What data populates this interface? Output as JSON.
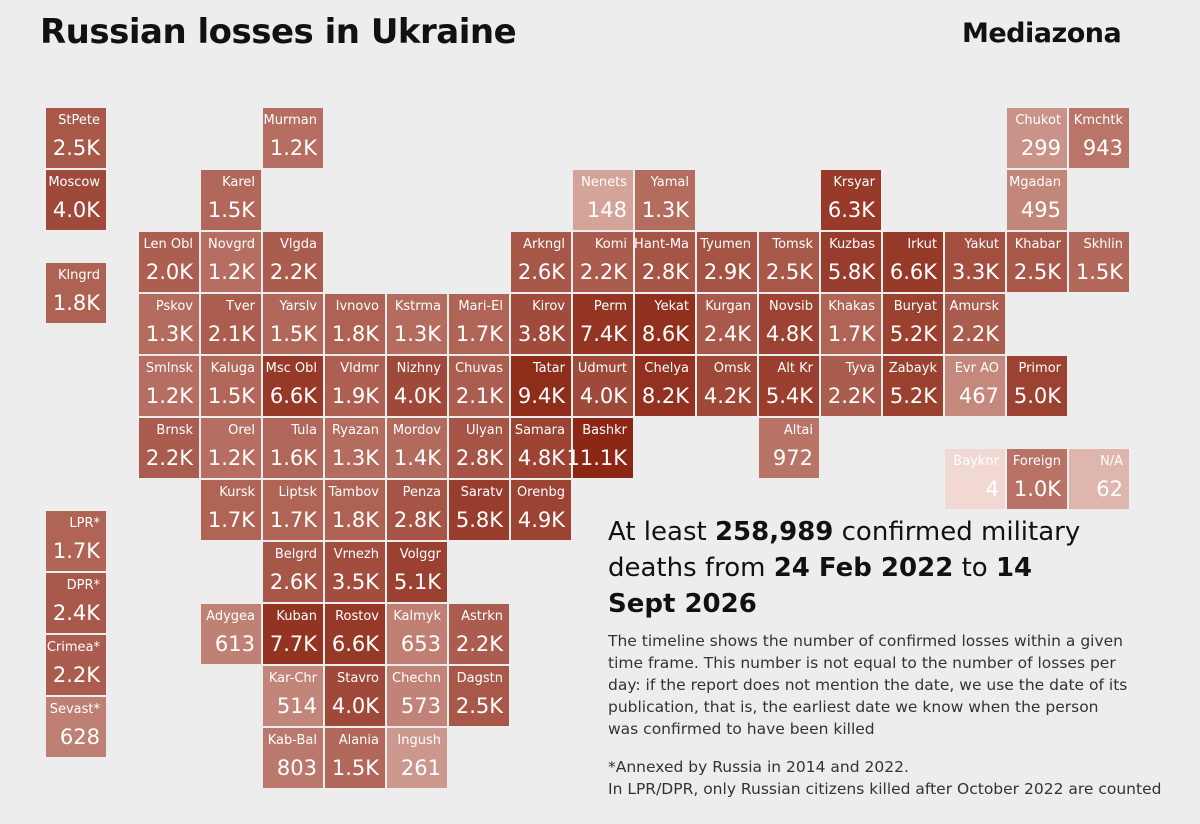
{
  "header": {
    "title": "Russian losses in Ukraine",
    "brand": "Mediazona"
  },
  "tiles": [
    {
      "name": "StPete",
      "value": 2500,
      "label": "2.5K"
    },
    {
      "name": "Murman",
      "value": 1200,
      "label": "1.2K"
    },
    {
      "name": "Chukot",
      "value": 299,
      "label": "299"
    },
    {
      "name": "Kmchtk",
      "value": 943,
      "label": "943"
    },
    {
      "name": "Moscow",
      "value": 4000,
      "label": "4.0K"
    },
    {
      "name": "Karel",
      "value": 1500,
      "label": "1.5K"
    },
    {
      "name": "Nenets",
      "value": 148,
      "label": "148"
    },
    {
      "name": "Yamal",
      "value": 1300,
      "label": "1.3K"
    },
    {
      "name": "Krsyar",
      "value": 6300,
      "label": "6.3K"
    },
    {
      "name": "Mgadan",
      "value": 495,
      "label": "495"
    },
    {
      "name": "Len Obl",
      "value": 2000,
      "label": "2.0K"
    },
    {
      "name": "Novgrd",
      "value": 1200,
      "label": "1.2K"
    },
    {
      "name": "Vlgda",
      "value": 2200,
      "label": "2.2K"
    },
    {
      "name": "Arkngl",
      "value": 2600,
      "label": "2.6K"
    },
    {
      "name": "Komi",
      "value": 2200,
      "label": "2.2K"
    },
    {
      "name": "Hant-Ma",
      "value": 2800,
      "label": "2.8K"
    },
    {
      "name": "Tyumen",
      "value": 2900,
      "label": "2.9K"
    },
    {
      "name": "Tomsk",
      "value": 2500,
      "label": "2.5K"
    },
    {
      "name": "Kuzbas",
      "value": 5800,
      "label": "5.8K"
    },
    {
      "name": "Irkut",
      "value": 6600,
      "label": "6.6K"
    },
    {
      "name": "Yakut",
      "value": 3300,
      "label": "3.3K"
    },
    {
      "name": "Khabar",
      "value": 2500,
      "label": "2.5K"
    },
    {
      "name": "Skhlin",
      "value": 1500,
      "label": "1.5K"
    },
    {
      "name": "Klngrd",
      "value": 1800,
      "label": "1.8K"
    },
    {
      "name": "Pskov",
      "value": 1300,
      "label": "1.3K"
    },
    {
      "name": "Tver",
      "value": 2100,
      "label": "2.1K"
    },
    {
      "name": "Yarslv",
      "value": 1500,
      "label": "1.5K"
    },
    {
      "name": "Ivnovo",
      "value": 1800,
      "label": "1.8K"
    },
    {
      "name": "Kstrma",
      "value": 1300,
      "label": "1.3K"
    },
    {
      "name": "Mari-El",
      "value": 1700,
      "label": "1.7K"
    },
    {
      "name": "Kirov",
      "value": 3800,
      "label": "3.8K"
    },
    {
      "name": "Perm",
      "value": 7400,
      "label": "7.4K"
    },
    {
      "name": "Yekat",
      "value": 8600,
      "label": "8.6K"
    },
    {
      "name": "Kurgan",
      "value": 2400,
      "label": "2.4K"
    },
    {
      "name": "Novsib",
      "value": 4800,
      "label": "4.8K"
    },
    {
      "name": "Khakas",
      "value": 1700,
      "label": "1.7K"
    },
    {
      "name": "Buryat",
      "value": 5200,
      "label": "5.2K"
    },
    {
      "name": "Amursk",
      "value": 2200,
      "label": "2.2K"
    },
    {
      "name": "Smlnsk",
      "value": 1200,
      "label": "1.2K"
    },
    {
      "name": "Kaluga",
      "value": 1500,
      "label": "1.5K"
    },
    {
      "name": "Msc Obl",
      "value": 6600,
      "label": "6.6K"
    },
    {
      "name": "Vldmr",
      "value": 1900,
      "label": "1.9K"
    },
    {
      "name": "Nizhny",
      "value": 4000,
      "label": "4.0K"
    },
    {
      "name": "Chuvas",
      "value": 2100,
      "label": "2.1K"
    },
    {
      "name": "Tatar",
      "value": 9400,
      "label": "9.4K"
    },
    {
      "name": "Udmurt",
      "value": 4000,
      "label": "4.0K"
    },
    {
      "name": "Chelya",
      "value": 8200,
      "label": "8.2K"
    },
    {
      "name": "Omsk",
      "value": 4200,
      "label": "4.2K"
    },
    {
      "name": "Alt Kr",
      "value": 5400,
      "label": "5.4K"
    },
    {
      "name": "Tyva",
      "value": 2200,
      "label": "2.2K"
    },
    {
      "name": "Zabayk",
      "value": 5200,
      "label": "5.2K"
    },
    {
      "name": "Evr AO",
      "value": 467,
      "label": "467"
    },
    {
      "name": "Primor",
      "value": 5000,
      "label": "5.0K"
    },
    {
      "name": "Brnsk",
      "value": 2200,
      "label": "2.2K"
    },
    {
      "name": "Orel",
      "value": 1200,
      "label": "1.2K"
    },
    {
      "name": "Tula",
      "value": 1600,
      "label": "1.6K"
    },
    {
      "name": "Ryazan",
      "value": 1300,
      "label": "1.3K"
    },
    {
      "name": "Mordov",
      "value": 1400,
      "label": "1.4K"
    },
    {
      "name": "Ulyan",
      "value": 2800,
      "label": "2.8K"
    },
    {
      "name": "Samara",
      "value": 4800,
      "label": "4.8K"
    },
    {
      "name": "Bashkr",
      "value": 11100,
      "label": "11.1K"
    },
    {
      "name": "Altai",
      "value": 972,
      "label": "972"
    },
    {
      "name": "Bayknr",
      "value": 4,
      "label": "4"
    },
    {
      "name": "Foreign",
      "value": 1000,
      "label": "1.0K"
    },
    {
      "name": "N/A",
      "value": 62,
      "label": "62"
    },
    {
      "name": "Kursk",
      "value": 1700,
      "label": "1.7K"
    },
    {
      "name": "Liptsk",
      "value": 1700,
      "label": "1.7K"
    },
    {
      "name": "Tambov",
      "value": 1800,
      "label": "1.8K"
    },
    {
      "name": "Penza",
      "value": 2800,
      "label": "2.8K"
    },
    {
      "name": "Saratv",
      "value": 5800,
      "label": "5.8K"
    },
    {
      "name": "Orenbg",
      "value": 4900,
      "label": "4.9K"
    },
    {
      "name": "LPR*",
      "value": 1700,
      "label": "1.7K"
    },
    {
      "name": "DPR*",
      "value": 2400,
      "label": "2.4K"
    },
    {
      "name": "Crimea*",
      "value": 2200,
      "label": "2.2K"
    },
    {
      "name": "Sevast*",
      "value": 628,
      "label": "628"
    },
    {
      "name": "Belgrd",
      "value": 2600,
      "label": "2.6K"
    },
    {
      "name": "Vrnezh",
      "value": 3500,
      "label": "3.5K"
    },
    {
      "name": "Volggr",
      "value": 5100,
      "label": "5.1K"
    },
    {
      "name": "Adygea",
      "value": 613,
      "label": "613"
    },
    {
      "name": "Kuban",
      "value": 7700,
      "label": "7.7K"
    },
    {
      "name": "Rostov",
      "value": 6600,
      "label": "6.6K"
    },
    {
      "name": "Kalmyk",
      "value": 653,
      "label": "653"
    },
    {
      "name": "Astrkn",
      "value": 2200,
      "label": "2.2K"
    },
    {
      "name": "Kar-Chr",
      "value": 514,
      "label": "514"
    },
    {
      "name": "Stavro",
      "value": 4000,
      "label": "4.0K"
    },
    {
      "name": "Chechn",
      "value": 573,
      "label": "573"
    },
    {
      "name": "Dagstn",
      "value": 2500,
      "label": "2.5K"
    },
    {
      "name": "Kab-Bal",
      "value": 803,
      "label": "803"
    },
    {
      "name": "Alania",
      "value": 1500,
      "label": "1.5K"
    },
    {
      "name": "Ingush",
      "value": 261,
      "label": "261"
    }
  ],
  "summary": {
    "prefix": "At least",
    "total": "258,989",
    "middle": "confirmed military deaths from",
    "start": "24 Feb 2022",
    "to": "to",
    "end": "14 Sept 2026"
  },
  "note": "The timeline shows the number of confirmed losses within a given time frame. This number is not equal to the number of losses per day: if the report does not mention the date, we use the date of its publication, that is, the earliest date we know when the person was confirmed to have been killed",
  "footnotes": [
    "*Annexed by Russia in 2014 and 2022.",
    "In LPR/DPR, only Russian citizens killed after October 2022 are counted"
  ]
}
